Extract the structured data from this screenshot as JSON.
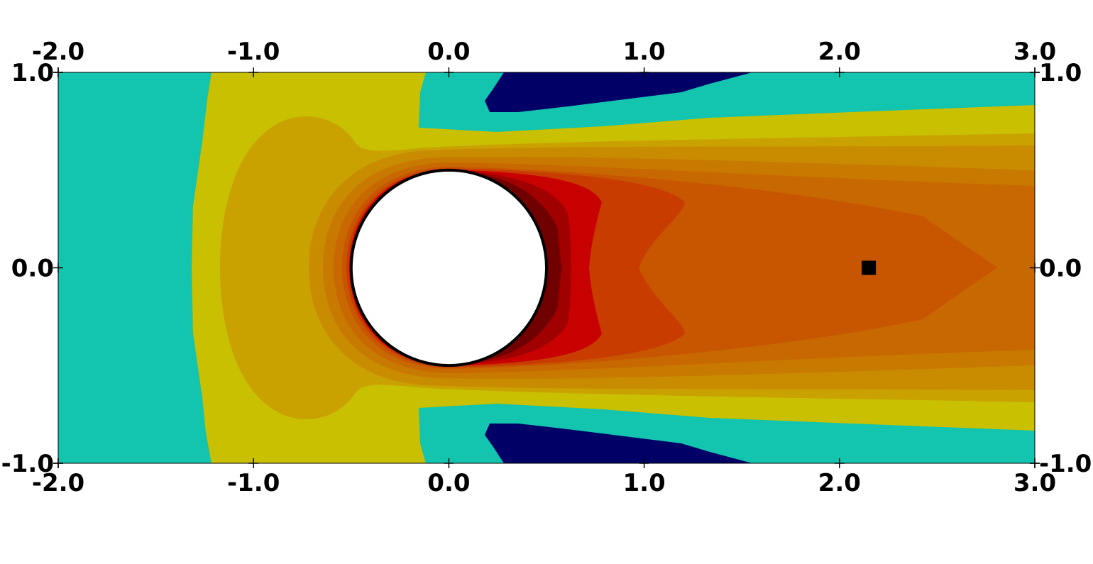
{
  "chart_data": {
    "type": "contour",
    "title": "",
    "xlabel": "",
    "ylabel": "",
    "xlim": [
      -2.0,
      3.0
    ],
    "ylim": [
      -1.0,
      1.0
    ],
    "grid": false,
    "legend": "none",
    "xticks": [
      "-2.0",
      "-1.0",
      "0.0",
      "1.0",
      "2.0",
      "3.0"
    ],
    "xtick_values": [
      -2,
      -1,
      0,
      1,
      2,
      3
    ],
    "yticks": [
      "1.0",
      "0.0",
      "-1.0"
    ],
    "ytick_values": [
      1,
      0,
      -1
    ],
    "band_colors": [
      "#13c4ae",
      "#000066",
      "#c8c000",
      "#c9a200",
      "#c98c00",
      "#c87a00",
      "#c86800",
      "#c85500",
      "#c83c00",
      "#c80000",
      "#a00000",
      "#700000"
    ],
    "obstacle": {
      "shape": "circle",
      "center": [
        0.0,
        0.0
      ],
      "radius": 0.5,
      "fill": "#ffffff"
    },
    "marker": {
      "shape": "square",
      "x": 2.15,
      "y": 0.0,
      "color": "#000000"
    }
  }
}
